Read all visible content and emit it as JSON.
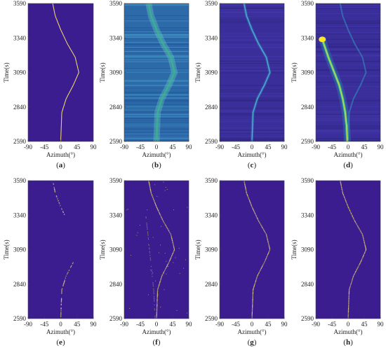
{
  "chart_data": [
    {
      "type": "heatmap",
      "panel_label": "a",
      "xlabel": "Azimuth(°)",
      "ylabel": "Time(s)",
      "x_ticks": [
        -90,
        -45,
        0,
        45,
        90
      ],
      "y_ticks": [
        2590,
        2840,
        3090,
        3340,
        3590
      ],
      "xlim": [
        -90,
        90
      ],
      "ylim": [
        2590,
        3590
      ],
      "style": "clean",
      "track": {
        "time": [
          2590,
          2800,
          2900,
          3000,
          3090,
          3200,
          3300,
          3400,
          3500,
          3590
        ],
        "azimuth": [
          0,
          3,
          15,
          35,
          50,
          40,
          18,
          0,
          -15,
          -22
        ]
      }
    },
    {
      "type": "heatmap",
      "panel_label": "b",
      "xlabel": "Azimuth(°)",
      "ylabel": "Time(s)",
      "x_ticks": [
        -90,
        -45,
        0,
        45,
        90
      ],
      "y_ticks": [
        2590,
        2840,
        3090,
        3340,
        3590
      ],
      "xlim": [
        -90,
        90
      ],
      "ylim": [
        2590,
        3590
      ],
      "style": "noisy-broad"
    },
    {
      "type": "heatmap",
      "panel_label": "c",
      "xlabel": "Azimuth(°)",
      "ylabel": "Time(s)",
      "x_ticks": [
        -90,
        -45,
        0,
        45,
        90
      ],
      "y_ticks": [
        2590,
        2840,
        3090,
        3340,
        3590
      ],
      "xlim": [
        -90,
        90
      ],
      "ylim": [
        2590,
        3590
      ],
      "style": "noisy-narrow"
    },
    {
      "type": "heatmap",
      "panel_label": "d",
      "xlabel": "Azimuth(°)",
      "ylabel": "Time(s)",
      "x_ticks": [
        -90,
        -45,
        0,
        45,
        90
      ],
      "y_ticks": [
        2590,
        2840,
        3090,
        3340,
        3590
      ],
      "xlim": [
        -90,
        90
      ],
      "ylim": [
        2590,
        3590
      ],
      "style": "interference",
      "interferer": {
        "time": [
          2590,
          2700,
          2800,
          2900,
          3000,
          3100,
          3200,
          3300,
          3340
        ],
        "azimuth": [
          -2,
          -4,
          -8,
          -15,
          -25,
          -40,
          -55,
          -68,
          -72
        ]
      }
    },
    {
      "type": "heatmap",
      "panel_label": "e",
      "xlabel": "Azimuth(°)",
      "ylabel": "Time(s)",
      "x_ticks": [
        -90,
        -45,
        0,
        45,
        90
      ],
      "y_ticks": [
        2590,
        2840,
        3090,
        3340,
        3590
      ],
      "xlim": [
        -90,
        90
      ],
      "ylim": [
        2590,
        3590
      ],
      "style": "sparse-partial"
    },
    {
      "type": "heatmap",
      "panel_label": "f",
      "xlabel": "Azimuth(°)",
      "ylabel": "Time(s)",
      "x_ticks": [
        -90,
        -45,
        0,
        45,
        90
      ],
      "y_ticks": [
        2590,
        2840,
        3090,
        3340,
        3590
      ],
      "xlim": [
        -90,
        90
      ],
      "ylim": [
        2590,
        3590
      ],
      "style": "sparse-speckle"
    },
    {
      "type": "heatmap",
      "panel_label": "g",
      "xlabel": "Azimuth(°)",
      "ylabel": "Time(s)",
      "x_ticks": [
        -90,
        -45,
        0,
        45,
        90
      ],
      "y_ticks": [
        2590,
        2840,
        3090,
        3340,
        3590
      ],
      "xlim": [
        -90,
        90
      ],
      "ylim": [
        2590,
        3590
      ],
      "style": "sparse-clean"
    },
    {
      "type": "heatmap",
      "panel_label": "h",
      "xlabel": "Azimuth(°)",
      "ylabel": "Time(s)",
      "x_ticks": [
        -90,
        -45,
        0,
        45,
        90
      ],
      "y_ticks": [
        2590,
        2840,
        3090,
        3340,
        3590
      ],
      "xlim": [
        -90,
        90
      ],
      "ylim": [
        2590,
        3590
      ],
      "style": "sparse-clean"
    }
  ],
  "colors": {
    "background": "#3b1d8f",
    "track": "#e8d36a",
    "bright": "#fde725",
    "mid": "#21a585",
    "low": "#2c6fb0"
  }
}
